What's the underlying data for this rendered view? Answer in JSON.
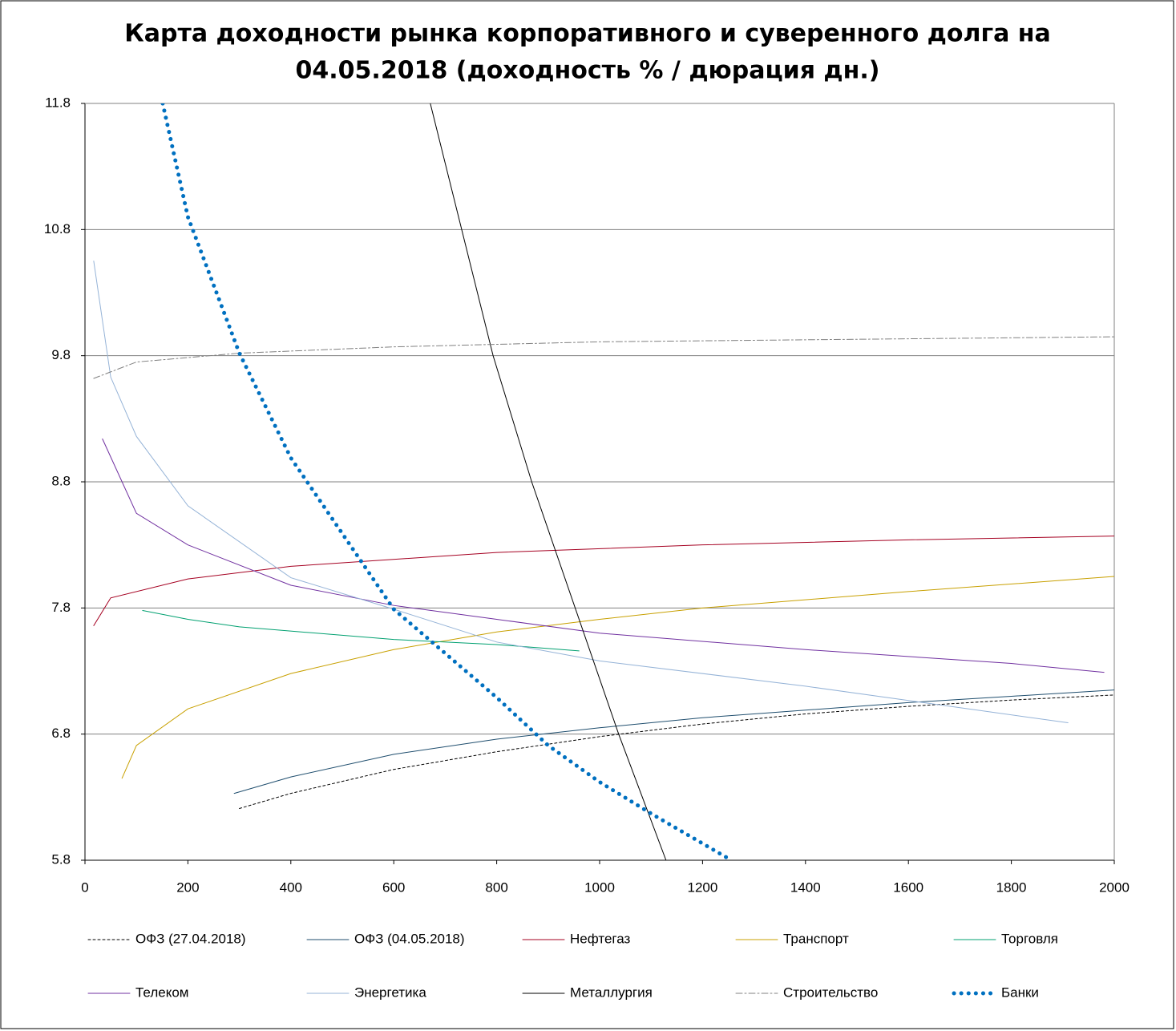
{
  "chart_data": {
    "type": "line",
    "title": [
      "Карта доходности рынка корпоративного и суверенного долга на",
      "04.05.2018 (доходность % / дюрация дн.)"
    ],
    "xlim": [
      0,
      2000
    ],
    "xticks": [
      0,
      200,
      400,
      600,
      800,
      1000,
      1200,
      1400,
      1600,
      1800,
      2000
    ],
    "ylim": [
      5.8,
      11.8
    ],
    "yticks": [
      5.8,
      6.8,
      7.8,
      8.8,
      9.8,
      10.8,
      11.8
    ],
    "grid": true,
    "series": [
      {
        "name": "ОФЗ (27.04.2018)",
        "color": "#000000",
        "dash": "3,3",
        "width": 1,
        "x": [
          300,
          400,
          600,
          800,
          1000,
          1200,
          1400,
          1600,
          1800,
          2000
        ],
        "values": [
          6.21,
          6.33,
          6.52,
          6.66,
          6.78,
          6.88,
          6.96,
          7.02,
          7.07,
          7.11
        ]
      },
      {
        "name": "ОФЗ (04.05.2018)",
        "color": "#1f4e6e",
        "dash": "none",
        "width": 1,
        "x": [
          290,
          400,
          600,
          800,
          1000,
          1200,
          1400,
          1600,
          1800,
          2000
        ],
        "values": [
          6.33,
          6.46,
          6.64,
          6.76,
          6.85,
          6.93,
          6.99,
          7.05,
          7.1,
          7.15
        ]
      },
      {
        "name": "Нефтегаз",
        "color": "#a50021",
        "dash": "none",
        "width": 1,
        "x": [
          17,
          50,
          200,
          400,
          800,
          1200,
          1600,
          2000
        ],
        "values": [
          7.66,
          7.88,
          8.03,
          8.13,
          8.24,
          8.3,
          8.34,
          8.37
        ]
      },
      {
        "name": "Транспорт",
        "color": "#c8a000",
        "dash": "none",
        "width": 1,
        "x": [
          72,
          100,
          200,
          400,
          600,
          800,
          1000,
          1200,
          1600,
          2000
        ],
        "values": [
          6.45,
          6.71,
          7.0,
          7.28,
          7.47,
          7.61,
          7.71,
          7.8,
          7.93,
          8.05
        ]
      },
      {
        "name": "Торговля",
        "color": "#00a070",
        "dash": "none",
        "width": 1,
        "x": [
          112,
          200,
          300,
          600,
          800,
          960
        ],
        "values": [
          7.78,
          7.71,
          7.65,
          7.55,
          7.51,
          7.46
        ]
      },
      {
        "name": "Телеком",
        "color": "#7030a0",
        "dash": "none",
        "width": 1,
        "x": [
          34,
          100,
          200,
          400,
          600,
          800,
          1000,
          1400,
          1800,
          1980
        ],
        "values": [
          9.14,
          8.55,
          8.3,
          7.98,
          7.82,
          7.71,
          7.6,
          7.47,
          7.36,
          7.29
        ]
      },
      {
        "name": "Энергетика",
        "color": "#95b3d7",
        "dash": "none",
        "width": 1,
        "x": [
          17,
          50,
          100,
          200,
          400,
          600,
          800,
          1000,
          1400,
          1910
        ],
        "values": [
          10.55,
          9.63,
          9.16,
          8.61,
          8.04,
          7.79,
          7.53,
          7.38,
          7.18,
          6.89
        ]
      },
      {
        "name": "Металлургия",
        "color": "#000000",
        "dash": "none",
        "width": 1,
        "x": [
          671,
          793,
          868,
          1037,
          1129
        ],
        "values": [
          11.8,
          9.8,
          8.8,
          6.8,
          5.8
        ]
      },
      {
        "name": "Строительство",
        "color": "#808080",
        "dash": "8,3,2,3",
        "width": 1,
        "x": [
          17,
          100,
          300,
          600,
          1000,
          1500,
          2000
        ],
        "values": [
          9.62,
          9.75,
          9.82,
          9.87,
          9.91,
          9.93,
          9.95
        ]
      },
      {
        "name": "Банки",
        "color": "#0070c0",
        "dash": "0.1,9",
        "width": 5,
        "x": [
          151,
          200,
          300,
          400,
          600,
          800,
          900,
          1000,
          1100,
          1256
        ],
        "values": [
          11.8,
          10.9,
          9.82,
          8.99,
          7.79,
          7.09,
          6.71,
          6.42,
          6.17,
          5.8
        ]
      }
    ]
  }
}
